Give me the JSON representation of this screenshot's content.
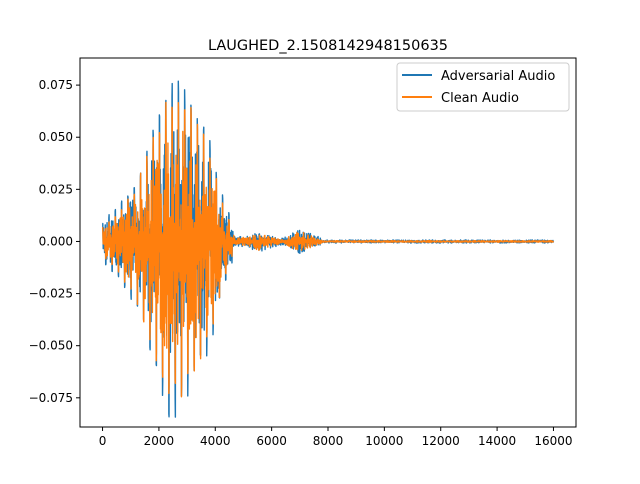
{
  "chart_data": {
    "type": "line",
    "title": "LAUGHED_2.1508142948150635",
    "xlabel": "",
    "ylabel": "",
    "xlim": [
      -800,
      16800
    ],
    "ylim": [
      -0.089,
      0.088
    ],
    "x_ticks": [
      0,
      2000,
      4000,
      6000,
      8000,
      10000,
      12000,
      14000,
      16000
    ],
    "x_tick_labels": [
      "0",
      "2000",
      "4000",
      "6000",
      "8000",
      "10000",
      "12000",
      "14000",
      "16000"
    ],
    "y_ticks": [
      -0.075,
      -0.05,
      -0.025,
      0.0,
      0.025,
      0.05,
      0.075
    ],
    "y_tick_labels": [
      "−0.075",
      "−0.050",
      "−0.025",
      "0.000",
      "0.025",
      "0.050",
      "0.075"
    ],
    "legend_position": "upper-right",
    "grid": false,
    "sample_count": 16000,
    "series": [
      {
        "name": "Adversarial Audio",
        "color": "#1f77b4",
        "envelope_x": [
          0,
          600,
          1200,
          1800,
          2400,
          2800,
          3200,
          3800,
          4300,
          4600,
          4700,
          5200,
          5500,
          6000,
          6400,
          6700,
          7000,
          7400,
          7700,
          7800,
          16000
        ],
        "envelope_upper": [
          0.01,
          0.018,
          0.03,
          0.055,
          0.079,
          0.078,
          0.068,
          0.05,
          0.02,
          0.01,
          0.003,
          0.004,
          0.006,
          0.004,
          0.002,
          0.005,
          0.008,
          0.005,
          0.003,
          0.001,
          0.001
        ],
        "envelope_lower": [
          -0.01,
          -0.019,
          -0.032,
          -0.058,
          -0.088,
          -0.08,
          -0.07,
          -0.052,
          -0.022,
          -0.01,
          -0.003,
          -0.004,
          -0.007,
          -0.004,
          -0.002,
          -0.005,
          -0.008,
          -0.005,
          -0.003,
          -0.001,
          -0.001
        ]
      },
      {
        "name": "Clean Audio",
        "color": "#ff7f0e",
        "envelope_x": [
          0,
          600,
          1200,
          1800,
          2400,
          2800,
          3200,
          3800,
          4300,
          4600,
          4700,
          5200,
          5500,
          6000,
          6400,
          6700,
          7000,
          7400,
          7700,
          7800,
          16000
        ],
        "envelope_upper": [
          0.007,
          0.015,
          0.027,
          0.05,
          0.073,
          0.075,
          0.065,
          0.045,
          0.017,
          0.008,
          0.002,
          0.003,
          0.005,
          0.003,
          0.001,
          0.004,
          0.007,
          0.004,
          0.002,
          0.0005,
          0.0005
        ],
        "envelope_lower": [
          -0.007,
          -0.016,
          -0.029,
          -0.053,
          -0.08,
          -0.076,
          -0.066,
          -0.047,
          -0.019,
          -0.008,
          -0.002,
          -0.003,
          -0.006,
          -0.003,
          -0.001,
          -0.004,
          -0.007,
          -0.004,
          -0.002,
          -0.0005,
          -0.0005
        ]
      }
    ]
  }
}
